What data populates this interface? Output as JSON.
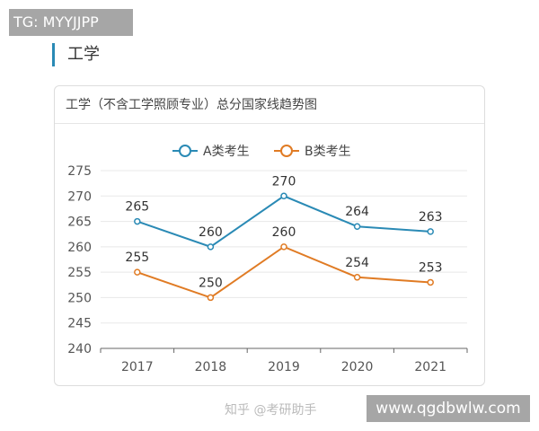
{
  "tag_label": "TG: MYYJJPP",
  "section_title": "工学",
  "site_label": "www.qgdbwlw.com",
  "watermark": "知乎 @考研助手",
  "chart_data": {
    "type": "line",
    "title": "工学（不含工学照顾专业）总分国家线趋势图",
    "categories": [
      "2017",
      "2018",
      "2019",
      "2020",
      "2021"
    ],
    "ylim": [
      240,
      275
    ],
    "yticks": [
      240,
      245,
      250,
      255,
      260,
      265,
      270,
      275
    ],
    "grid": true,
    "legend_position": "top",
    "series": [
      {
        "name": "A类考生",
        "values": [
          265,
          260,
          270,
          264,
          263
        ],
        "color": "#2a8ab5"
      },
      {
        "name": "B类考生",
        "values": [
          255,
          250,
          260,
          254,
          253
        ],
        "color": "#e07b24"
      }
    ]
  }
}
